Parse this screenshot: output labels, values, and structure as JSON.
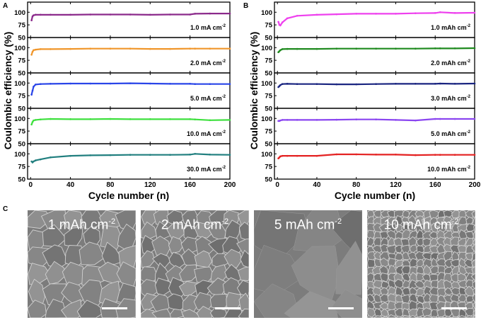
{
  "panels": {
    "a": "A",
    "b": "B",
    "c": "C"
  },
  "chart_data": [
    {
      "type": "line",
      "panel": "A",
      "xlabel": "Cycle number (n)",
      "ylabel": "Coulombic efficiency (%)",
      "xlim": [
        -3,
        200
      ],
      "xticks": [
        0,
        40,
        80,
        120,
        160,
        200
      ],
      "ylim": [
        50,
        120
      ],
      "yticks": [
        50,
        75,
        100
      ],
      "x": [
        1,
        2,
        3,
        5,
        10,
        20,
        40,
        60,
        80,
        100,
        120,
        140,
        160,
        165,
        180,
        200
      ],
      "series": [
        {
          "label": "1.0 mA cm",
          "sup": "-2",
          "color": "#8b2a8b",
          "values": [
            84,
            92,
            94,
            95,
            95,
            95,
            95,
            95.5,
            95.5,
            95.5,
            95,
            95.5,
            95.5,
            97,
            97.5,
            97.5
          ]
        },
        {
          "label": "2.0 mA cm",
          "sup": "-2",
          "color": "#f0962a",
          "values": [
            86,
            92,
            95,
            96,
            97,
            97,
            97.5,
            98,
            98,
            98,
            97.5,
            97.5,
            98,
            98,
            98,
            98
          ]
        },
        {
          "label": "5.0 mA cm",
          "sup": "-2",
          "color": "#2a45e8",
          "values": [
            77,
            85,
            93,
            97,
            98,
            98.5,
            99,
            99,
            99,
            99.5,
            99,
            98.5,
            98.5,
            98,
            98,
            98
          ]
        },
        {
          "label": "10.0 mA cm",
          "sup": "-2",
          "color": "#3ee03e",
          "values": [
            88,
            93,
            96,
            97,
            98,
            99,
            98.5,
            98.5,
            99,
            98.5,
            98.5,
            98.5,
            98.5,
            98,
            96.5,
            97
          ]
        },
        {
          "label": "30.0 mA cm",
          "sup": "-2",
          "color": "#217f7f",
          "values": [
            85,
            83,
            85,
            87,
            89,
            93,
            96,
            97,
            97.5,
            98,
            98,
            98,
            98.5,
            100,
            98.5,
            98
          ]
        }
      ]
    },
    {
      "type": "line",
      "panel": "B",
      "xlabel": "Cycle number (n)",
      "ylabel": "Coulombic efficiency (%)",
      "xlim": [
        -3,
        200
      ],
      "xticks": [
        0,
        40,
        80,
        120,
        160,
        200
      ],
      "ylim": [
        50,
        120
      ],
      "yticks": [
        50,
        75,
        100
      ],
      "x": [
        1,
        2,
        3,
        5,
        10,
        20,
        40,
        60,
        80,
        100,
        120,
        140,
        160,
        165,
        180,
        200
      ],
      "series": [
        {
          "label": "1.0 mAh cm",
          "sup": "-2",
          "color": "#ee40ee",
          "values": [
            81,
            75,
            74,
            80,
            88,
            93,
            95,
            96,
            97,
            97,
            97,
            98,
            98.5,
            100,
            98.5,
            99
          ]
        },
        {
          "label": "2.0 mAh cm",
          "sup": "-2",
          "color": "#1f8a1f",
          "values": [
            91,
            93,
            95,
            97,
            97.5,
            97.5,
            97.5,
            98,
            98,
            98,
            98,
            98,
            98.5,
            98.5,
            98.5,
            99
          ]
        },
        {
          "label": "3.0 mAh cm",
          "sup": "-2",
          "color": "#1a2580",
          "values": [
            92,
            94,
            96,
            98,
            98.5,
            98,
            98,
            97.5,
            97.5,
            98,
            98.5,
            98.5,
            98.5,
            99,
            98.5,
            99
          ]
        },
        {
          "label": "5.0 mAh cm",
          "sup": "-2",
          "color": "#8a45f0",
          "values": [
            95,
            95,
            96,
            97,
            97,
            97,
            97,
            97.5,
            98,
            98,
            97,
            96,
            99,
            99,
            99,
            99
          ]
        },
        {
          "label": "10.0 mAh cm",
          "sup": "-2",
          "color": "#e42222",
          "values": [
            91,
            93,
            95,
            96,
            96,
            96,
            96,
            99,
            99,
            98.5,
            98.5,
            97.5,
            98,
            98,
            98,
            98
          ]
        }
      ]
    }
  ],
  "sem_images": [
    {
      "label": "1 mAh cm",
      "sup": "-2"
    },
    {
      "label": "2 mAh cm",
      "sup": "-2"
    },
    {
      "label": "5 mAh cm",
      "sup": "-2"
    },
    {
      "label": "10 mAh cm",
      "sup": "-2"
    }
  ]
}
